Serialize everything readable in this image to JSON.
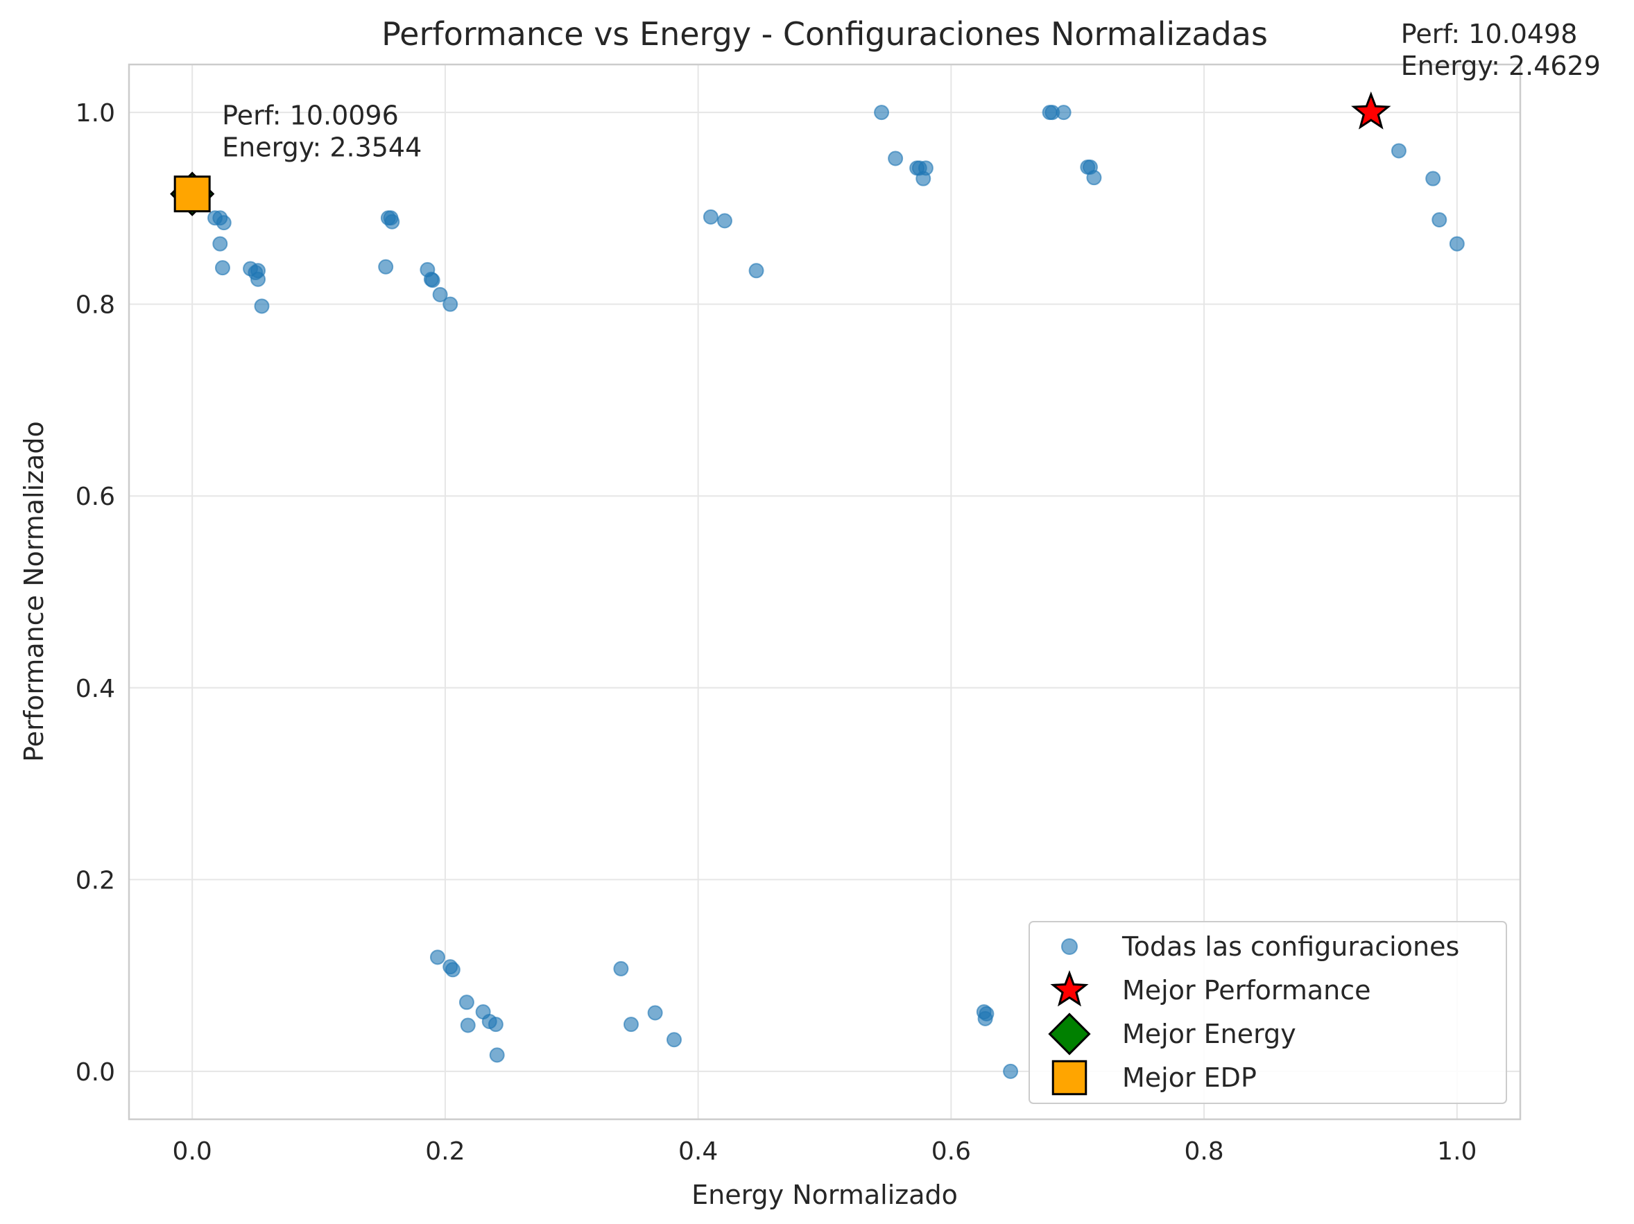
{
  "chart_data": {
    "type": "scatter",
    "title": "Performance vs Energy - Configuraciones Normalizadas",
    "xlabel": "Energy Normalizado",
    "ylabel": "Performance Normalizado",
    "xlim": [
      -0.05,
      1.05
    ],
    "ylim": [
      -0.05,
      1.05
    ],
    "xticks": [
      "0.0",
      "0.2",
      "0.4",
      "0.6",
      "0.8",
      "1.0"
    ],
    "yticks": [
      "0.0",
      "0.2",
      "0.4",
      "0.6",
      "0.8",
      "1.0"
    ],
    "grid": true,
    "legend_position": "lower-right",
    "series": [
      {
        "name": "Todas las configuraciones",
        "color": "#1f77b4",
        "marker": "circle",
        "points": [
          [
            0.0,
            0.915
          ],
          [
            0.018,
            0.89
          ],
          [
            0.022,
            0.89
          ],
          [
            0.025,
            0.885
          ],
          [
            0.022,
            0.863
          ],
          [
            0.024,
            0.838
          ],
          [
            0.046,
            0.837
          ],
          [
            0.05,
            0.833
          ],
          [
            0.052,
            0.835
          ],
          [
            0.052,
            0.826
          ],
          [
            0.055,
            0.798
          ],
          [
            0.153,
            0.839
          ],
          [
            0.155,
            0.89
          ],
          [
            0.157,
            0.89
          ],
          [
            0.158,
            0.886
          ],
          [
            0.186,
            0.836
          ],
          [
            0.189,
            0.826
          ],
          [
            0.19,
            0.825
          ],
          [
            0.196,
            0.81
          ],
          [
            0.204,
            0.8
          ],
          [
            0.41,
            0.891
          ],
          [
            0.421,
            0.887
          ],
          [
            0.446,
            0.835
          ],
          [
            0.545,
            1.0
          ],
          [
            0.556,
            0.952
          ],
          [
            0.573,
            0.942
          ],
          [
            0.575,
            0.942
          ],
          [
            0.578,
            0.931
          ],
          [
            0.58,
            0.942
          ],
          [
            0.678,
            1.0
          ],
          [
            0.68,
            1.0
          ],
          [
            0.689,
            1.0
          ],
          [
            0.708,
            0.943
          ],
          [
            0.71,
            0.943
          ],
          [
            0.713,
            0.932
          ],
          [
            0.954,
            0.96
          ],
          [
            0.981,
            0.931
          ],
          [
            0.986,
            0.888
          ],
          [
            1.0,
            0.863
          ],
          [
            0.194,
            0.119
          ],
          [
            0.204,
            0.109
          ],
          [
            0.206,
            0.106
          ],
          [
            0.217,
            0.072
          ],
          [
            0.218,
            0.048
          ],
          [
            0.23,
            0.062
          ],
          [
            0.235,
            0.052
          ],
          [
            0.24,
            0.049
          ],
          [
            0.241,
            0.017
          ],
          [
            0.339,
            0.107
          ],
          [
            0.347,
            0.049
          ],
          [
            0.366,
            0.061
          ],
          [
            0.381,
            0.033
          ],
          [
            0.626,
            0.062
          ],
          [
            0.627,
            0.055
          ],
          [
            0.628,
            0.06
          ],
          [
            0.647,
            0.0
          ]
        ]
      },
      {
        "name": "Mejor Performance",
        "color": "#ff0000",
        "marker": "star",
        "points": [
          [
            0.932,
            1.0
          ]
        ]
      },
      {
        "name": "Mejor Energy",
        "color": "#008000",
        "marker": "diamond",
        "points": [
          [
            0.0,
            0.915
          ]
        ]
      },
      {
        "name": "Mejor EDP",
        "color": "#ffa500",
        "marker": "square",
        "points": [
          [
            0.0,
            0.915
          ]
        ]
      }
    ],
    "annotations": [
      {
        "lines": [
          "Perf: 10.0096",
          "Energy: 2.3544"
        ],
        "at": [
          0.0,
          0.915
        ]
      },
      {
        "lines": [
          "Perf: 10.0498",
          "Energy: 2.4629"
        ],
        "at": [
          0.932,
          1.0
        ]
      }
    ]
  }
}
